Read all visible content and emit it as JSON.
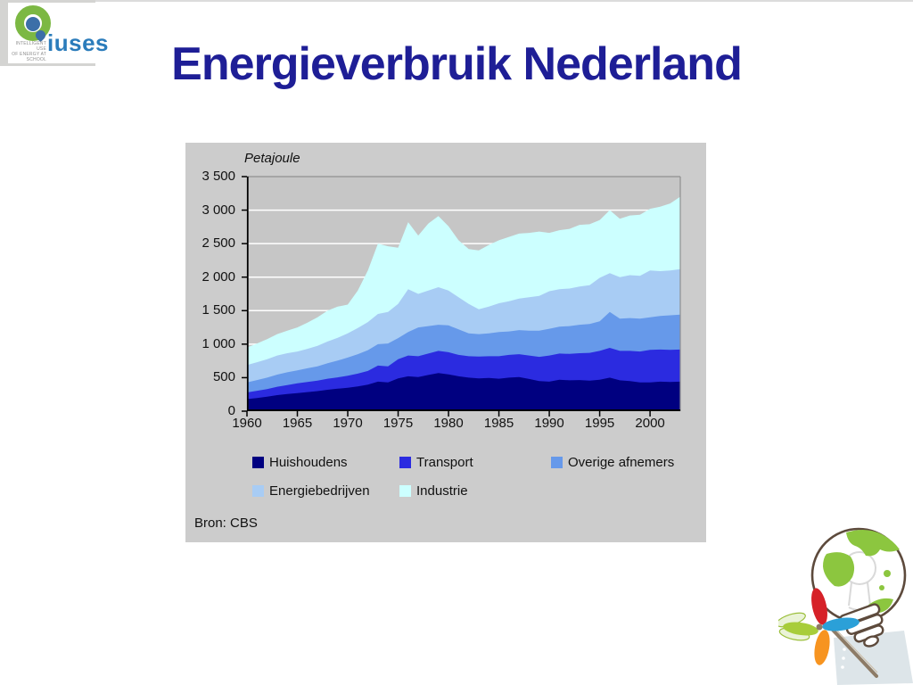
{
  "slide": {
    "title": "Energieverbruik Nederland",
    "title_color": "#1e1e96",
    "logo": {
      "wordmark": "iuses",
      "small_text_line1": "INTELLIGENT USE",
      "small_text_line2": "OF ENERGY AT SCHOOL"
    }
  },
  "chart_data": {
    "type": "area",
    "stacked": true,
    "title": "Petajoule",
    "source": "Bron: CBS",
    "ylabel": "Petajoule",
    "xlabel": "",
    "grid": "horizontal-white",
    "legend_position": "bottom",
    "plot_bg": "#c6c6c6",
    "panel_bg": "#cccccc",
    "ylim": [
      0,
      3500
    ],
    "y_tick_values": [
      0,
      500,
      1000,
      1500,
      2000,
      2500,
      3000,
      3500
    ],
    "y_tick_labels": [
      "0",
      "500",
      "1 000",
      "1 500",
      "2 000",
      "2 500",
      "3 000",
      "3 500"
    ],
    "x_ticks": [
      1960,
      1965,
      1970,
      1975,
      1980,
      1985,
      1990,
      1995,
      2000
    ],
    "x": [
      1960,
      1961,
      1962,
      1963,
      1964,
      1965,
      1966,
      1967,
      1968,
      1969,
      1970,
      1971,
      1972,
      1973,
      1974,
      1975,
      1976,
      1977,
      1978,
      1979,
      1980,
      1981,
      1982,
      1983,
      1984,
      1985,
      1986,
      1987,
      1988,
      1989,
      1990,
      1991,
      1992,
      1993,
      1994,
      1995,
      1996,
      1997,
      1998,
      1999,
      2000,
      2001,
      2002,
      2003
    ],
    "series": [
      {
        "name": "Huishoudens",
        "color": "#000080",
        "values": [
          180,
          195,
          215,
          240,
          255,
          270,
          285,
          300,
          320,
          335,
          350,
          370,
          395,
          440,
          430,
          490,
          520,
          510,
          540,
          570,
          550,
          520,
          500,
          490,
          495,
          485,
          500,
          510,
          480,
          450,
          440,
          470,
          460,
          465,
          455,
          470,
          500,
          460,
          450,
          430,
          430,
          440,
          435,
          440
        ]
      },
      {
        "name": "Transport",
        "color": "#2B2BE0",
        "values": [
          100,
          110,
          115,
          125,
          135,
          145,
          150,
          155,
          165,
          170,
          180,
          190,
          205,
          240,
          240,
          285,
          310,
          310,
          320,
          330,
          330,
          320,
          320,
          325,
          325,
          335,
          340,
          340,
          350,
          360,
          390,
          390,
          395,
          400,
          415,
          430,
          445,
          440,
          450,
          460,
          485,
          480,
          480,
          480
        ]
      },
      {
        "name": "Overige afnemers",
        "color": "#6699EA",
        "values": [
          150,
          160,
          170,
          180,
          190,
          195,
          205,
          215,
          230,
          250,
          270,
          290,
          310,
          320,
          340,
          315,
          350,
          430,
          410,
          390,
          400,
          380,
          340,
          335,
          340,
          360,
          350,
          360,
          370,
          390,
          400,
          400,
          415,
          425,
          430,
          440,
          535,
          480,
          490,
          490,
          485,
          500,
          515,
          520
        ]
      },
      {
        "name": "Energiebedrijven",
        "color": "#A8CCF4",
        "values": [
          260,
          265,
          275,
          285,
          285,
          280,
          290,
          305,
          325,
          340,
          360,
          390,
          420,
          450,
          470,
          510,
          640,
          500,
          530,
          560,
          520,
          480,
          440,
          370,
          400,
          430,
          450,
          470,
          500,
          520,
          560,
          560,
          560,
          570,
          580,
          650,
          580,
          620,
          640,
          640,
          700,
          670,
          670,
          680
        ]
      },
      {
        "name": "Industrie",
        "color": "#CCFFFF",
        "values": [
          260,
          280,
          300,
          320,
          335,
          360,
          390,
          425,
          460,
          465,
          430,
          560,
          770,
          1050,
          980,
          840,
          1000,
          870,
          1000,
          1060,
          960,
          850,
          820,
          880,
          920,
          940,
          960,
          970,
          960,
          960,
          870,
          880,
          890,
          920,
          910,
          860,
          940,
          870,
          890,
          910,
          920,
          960,
          1000,
          1080
        ]
      }
    ]
  }
}
